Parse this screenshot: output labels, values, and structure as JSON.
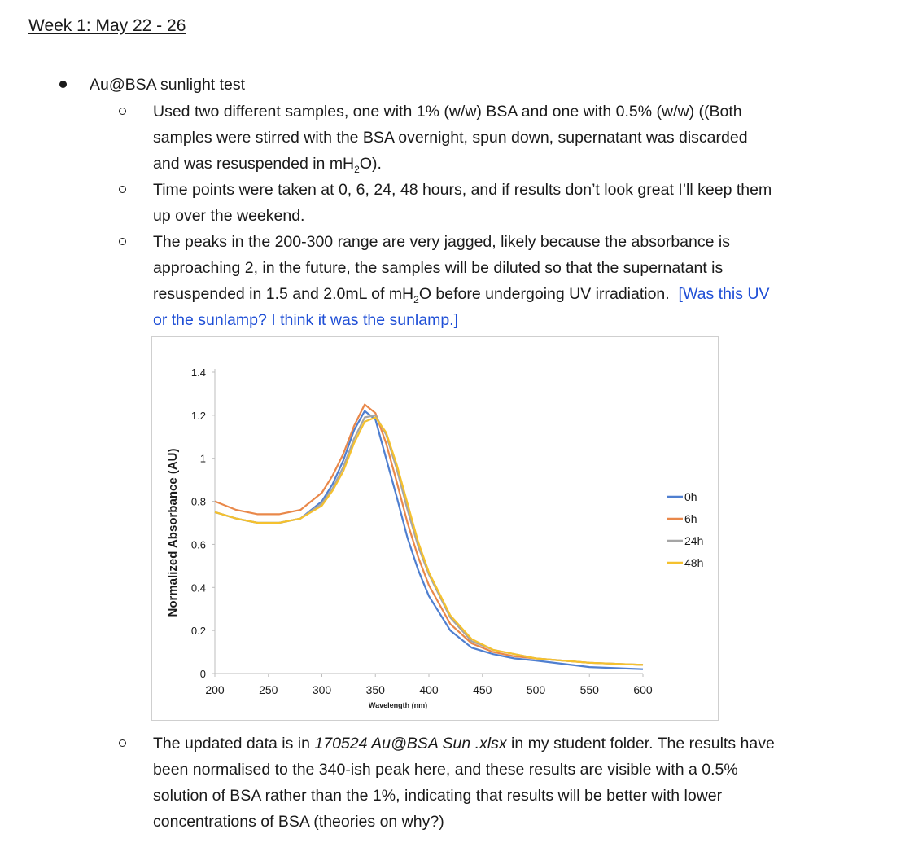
{
  "heading": "Week 1: May 22 - 26",
  "item": {
    "title": "Au@BSA sunlight test",
    "sub1": {
      "a": "Used two different samples, one with 1% (w/w) BSA and one with 0.5% (w/w) ((Both",
      "b": "samples were stirred with the BSA overnight, spun down, supernatant was discarded",
      "c_pre": "and was resuspended in mH",
      "c_sub": "2",
      "c_post": "O)."
    },
    "sub2": {
      "a": "Time points were taken at 0, 6, 24, 48 hours, and if results don’t look great I’ll keep them",
      "b": "up over the weekend."
    },
    "sub3": {
      "a": "The peaks in the 200-300 range are very jagged, likely because the absorbance is",
      "b": "approaching 2, in the future, the samples will be diluted so that the supernatant is",
      "c_pre": "resuspended in 1.5 and 2.0mL of mH",
      "c_sub": "2",
      "c_post": "O before undergoing UV irradiation.",
      "comment_a": "[Was this UV",
      "comment_b": "or the sunlamp?  I think it was the sunlamp.]"
    },
    "sub4": {
      "a_pre": "The updated data is in ",
      "a_file": "170524 Au@BSA Sun .xlsx",
      "a_post": " in my student folder. The results have",
      "b": "been normalised to the 340-ish peak here, and these results are visible with a 0.5%",
      "c": "solution of BSA rather than the 1%, indicating that results will be better with lower",
      "d": "concentrations of BSA (theories on why?)"
    }
  },
  "chart_data": {
    "type": "line",
    "title": "",
    "xlabel": "Wavelength (nm)",
    "ylabel": "Normalized Absorbance (AU)",
    "xlim": [
      200,
      600
    ],
    "ylim": [
      0,
      1.4
    ],
    "xticks": [
      "200",
      "250",
      "300",
      "350",
      "400",
      "450",
      "500",
      "550",
      "600"
    ],
    "yticks": [
      "0",
      "0.2",
      "0.4",
      "0.6",
      "0.8",
      "1",
      "1.2",
      "1.4"
    ],
    "legend": "right",
    "grid": false,
    "x": [
      200,
      220,
      240,
      260,
      280,
      300,
      310,
      320,
      330,
      340,
      350,
      360,
      370,
      380,
      390,
      400,
      420,
      440,
      460,
      480,
      500,
      550,
      600
    ],
    "series": [
      {
        "name": "0h",
        "color": "#4f7fd0",
        "values": [
          0.75,
          0.72,
          0.7,
          0.7,
          0.72,
          0.8,
          0.88,
          0.99,
          1.13,
          1.22,
          1.18,
          1.0,
          0.82,
          0.63,
          0.48,
          0.36,
          0.2,
          0.12,
          0.09,
          0.07,
          0.06,
          0.03,
          0.02
        ]
      },
      {
        "name": "6h",
        "color": "#e9884a",
        "values": [
          0.8,
          0.76,
          0.74,
          0.74,
          0.76,
          0.84,
          0.92,
          1.02,
          1.15,
          1.25,
          1.21,
          1.07,
          0.89,
          0.7,
          0.54,
          0.41,
          0.23,
          0.14,
          0.1,
          0.08,
          0.07,
          0.05,
          0.04
        ]
      },
      {
        "name": "24h",
        "color": "#a5a5a5",
        "values": [
          0.75,
          0.72,
          0.7,
          0.7,
          0.72,
          0.79,
          0.86,
          0.96,
          1.09,
          1.19,
          1.2,
          1.11,
          0.95,
          0.76,
          0.59,
          0.46,
          0.26,
          0.15,
          0.11,
          0.09,
          0.07,
          0.05,
          0.04
        ]
      },
      {
        "name": "48h",
        "color": "#f5c12e",
        "values": [
          0.75,
          0.72,
          0.7,
          0.7,
          0.72,
          0.78,
          0.85,
          0.94,
          1.07,
          1.17,
          1.19,
          1.12,
          0.97,
          0.79,
          0.61,
          0.47,
          0.27,
          0.16,
          0.11,
          0.09,
          0.07,
          0.05,
          0.04
        ]
      }
    ]
  }
}
